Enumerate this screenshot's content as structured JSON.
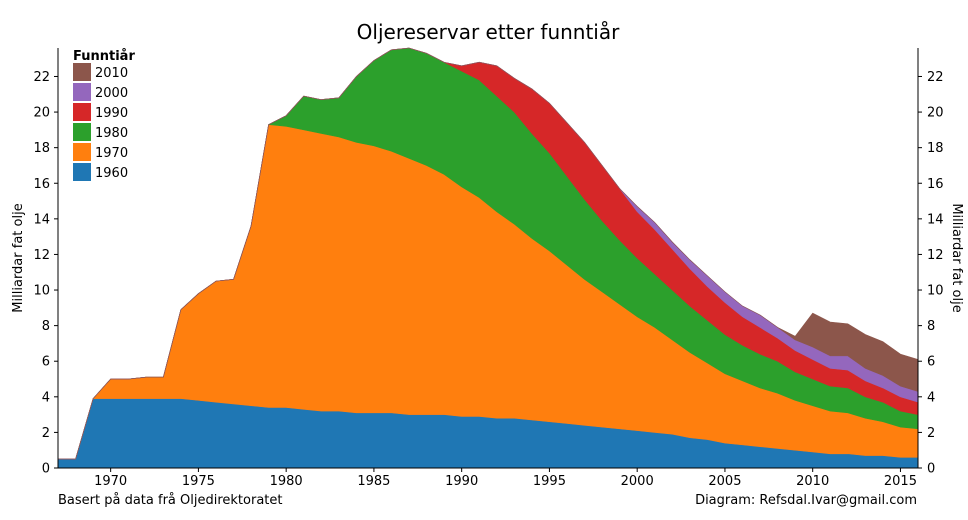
{
  "chart_data": {
    "type": "area",
    "stacked": true,
    "title": "Oljereservar etter funntiår",
    "ylabel_left": "Milliardar fat olje",
    "ylabel_right": "Milliardar fat olje",
    "xlim": [
      1967,
      2016
    ],
    "ylim": [
      0,
      23.6
    ],
    "xticks": [
      1970,
      1975,
      1980,
      1985,
      1990,
      1995,
      2000,
      2005,
      2010,
      2015
    ],
    "yticks": [
      0,
      2,
      4,
      6,
      8,
      10,
      12,
      14,
      16,
      18,
      20,
      22
    ],
    "legend_title": "Funntiår",
    "legend_position": "top-left",
    "footer_left": "Basert på data frå Oljedirektoratet",
    "footer_right": "Diagram: Refsdal.Ivar@gmail.com",
    "x": [
      1967,
      1968,
      1969,
      1970,
      1971,
      1972,
      1973,
      1974,
      1975,
      1976,
      1977,
      1978,
      1979,
      1980,
      1981,
      1982,
      1983,
      1984,
      1985,
      1986,
      1987,
      1988,
      1989,
      1990,
      1991,
      1992,
      1993,
      1994,
      1995,
      1996,
      1997,
      1998,
      1999,
      2000,
      2001,
      2002,
      2003,
      2004,
      2005,
      2006,
      2007,
      2008,
      2009,
      2010,
      2011,
      2012,
      2013,
      2014,
      2015,
      2016
    ],
    "series": [
      {
        "name": "1960",
        "color": "#1f77b4",
        "values": [
          0.5,
          0.5,
          3.9,
          3.9,
          3.9,
          3.9,
          3.9,
          3.9,
          3.8,
          3.7,
          3.6,
          3.5,
          3.4,
          3.4,
          3.3,
          3.2,
          3.2,
          3.1,
          3.1,
          3.1,
          3.0,
          3.0,
          3.0,
          2.9,
          2.9,
          2.8,
          2.8,
          2.7,
          2.6,
          2.5,
          2.4,
          2.3,
          2.2,
          2.1,
          2.0,
          1.9,
          1.7,
          1.6,
          1.4,
          1.3,
          1.2,
          1.1,
          1.0,
          0.9,
          0.8,
          0.8,
          0.7,
          0.7,
          0.6,
          0.6
        ]
      },
      {
        "name": "1970",
        "color": "#ff7f0e",
        "values": [
          0,
          0,
          0,
          1.1,
          1.1,
          1.2,
          1.2,
          5.0,
          6.0,
          6.8,
          7.0,
          10.1,
          15.9,
          15.8,
          15.7,
          15.6,
          15.4,
          15.2,
          15.0,
          14.7,
          14.4,
          14.0,
          13.5,
          12.9,
          12.3,
          11.6,
          10.9,
          10.2,
          9.6,
          8.9,
          8.2,
          7.6,
          7.0,
          6.4,
          5.9,
          5.3,
          4.8,
          4.3,
          3.9,
          3.6,
          3.3,
          3.1,
          2.8,
          2.6,
          2.4,
          2.3,
          2.1,
          1.9,
          1.7,
          1.6
        ]
      },
      {
        "name": "1980",
        "color": "#2ca02c",
        "values": [
          0,
          0,
          0,
          0,
          0,
          0,
          0,
          0,
          0,
          0,
          0,
          0,
          0,
          0.6,
          1.9,
          1.9,
          2.2,
          3.7,
          4.8,
          5.7,
          6.2,
          6.3,
          6.3,
          6.5,
          6.6,
          6.5,
          6.3,
          5.9,
          5.5,
          5.0,
          4.5,
          4.0,
          3.6,
          3.3,
          3.0,
          2.8,
          2.6,
          2.4,
          2.2,
          2.0,
          1.9,
          1.8,
          1.6,
          1.5,
          1.4,
          1.4,
          1.2,
          1.1,
          0.9,
          0.8
        ]
      },
      {
        "name": "1990",
        "color": "#d62728",
        "values": [
          0,
          0,
          0,
          0,
          0,
          0,
          0,
          0,
          0,
          0,
          0,
          0,
          0,
          0,
          0,
          0,
          0,
          0,
          0,
          0,
          0,
          0,
          0,
          0.3,
          1.0,
          1.7,
          1.9,
          2.5,
          2.8,
          3.0,
          3.2,
          3.1,
          2.9,
          2.6,
          2.5,
          2.3,
          2.1,
          1.9,
          1.8,
          1.6,
          1.5,
          1.3,
          1.2,
          1.1,
          1.0,
          1.0,
          0.9,
          0.8,
          0.8,
          0.7
        ]
      },
      {
        "name": "2000",
        "color": "#9467bd",
        "values": [
          0,
          0,
          0,
          0,
          0,
          0,
          0,
          0,
          0,
          0,
          0,
          0,
          0,
          0,
          0,
          0,
          0,
          0,
          0,
          0,
          0,
          0,
          0,
          0,
          0,
          0,
          0,
          0,
          0,
          0,
          0,
          0,
          0,
          0.3,
          0.4,
          0.4,
          0.5,
          0.6,
          0.6,
          0.6,
          0.7,
          0.6,
          0.6,
          0.7,
          0.7,
          0.8,
          0.7,
          0.7,
          0.6,
          0.6
        ]
      },
      {
        "name": "2010",
        "color": "#8c564b",
        "values": [
          0,
          0,
          0,
          0,
          0,
          0,
          0,
          0,
          0,
          0,
          0,
          0,
          0,
          0,
          0,
          0,
          0,
          0,
          0,
          0,
          0,
          0,
          0,
          0,
          0,
          0,
          0,
          0,
          0,
          0,
          0,
          0,
          0,
          0,
          0,
          0,
          0,
          0,
          0,
          0,
          0,
          0,
          0.2,
          1.9,
          1.9,
          1.8,
          1.9,
          1.9,
          1.8,
          1.8
        ]
      }
    ]
  }
}
